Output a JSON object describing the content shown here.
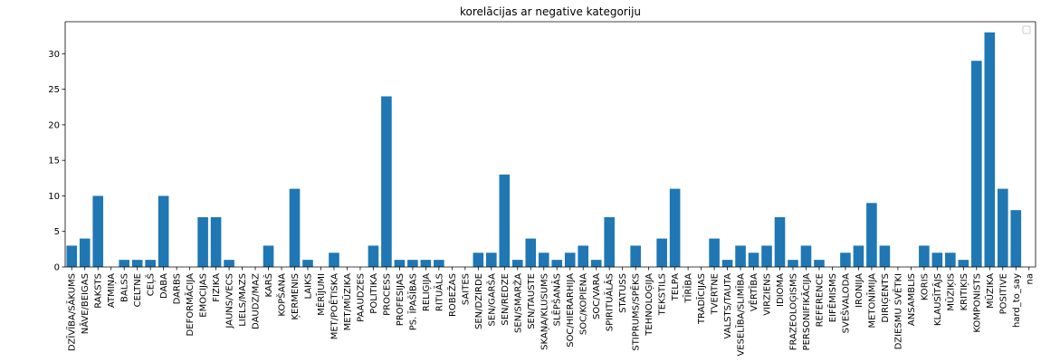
{
  "chart_data": {
    "type": "bar",
    "title": "korelācijas ar negative kategoriju",
    "xlabel": "",
    "ylabel": "",
    "ylim": [
      0,
      34.5
    ],
    "yticks": [
      0,
      5,
      10,
      15,
      20,
      25,
      30
    ],
    "grid": false,
    "legend_placement": "top-right",
    "legend_entries": [],
    "colors": {
      "bar": "#1f77b4"
    },
    "categories": [
      "DZĪVĪBA/SĀKUMS",
      "NĀVE/BEIGAS",
      "RAKSTS",
      "ATMIŅA",
      "BALSS",
      "CELTNE",
      "CEĻŠ",
      "DABA",
      "DARBS",
      "DEFORMĀCIJA",
      "EMOCIJAS",
      "FIZIKA",
      "JAUNS/VECS",
      "LIELS/MAZS",
      "DAUDZ/MAZ",
      "KARŠ",
      "KOPŠANA",
      "ĶERMENIS",
      "LAIKS",
      "MĒRĪJUMI",
      "MET/POĒTISKA",
      "MET/MŪZIKA",
      "PAAUDZES",
      "POLITIKA",
      "PROCESS",
      "PROFESIJAS",
      "PS. ĪPAŠĪBAS",
      "RELIĢIJA",
      "RITUĀLS",
      "ROBEŽAS",
      "SAITES",
      "SEN/DZIRDE",
      "SEN/GARŠA",
      "SEN/REDZE",
      "SEN/SMARŽA",
      "SEN/TAUSTE",
      "SKAŅA/KLUSUMS",
      "SLĒPŠANĀS",
      "SOC/HIERARHIJA",
      "SOC/KOPIENA",
      "SOC/VARA",
      "SPIRITUĀLĀS",
      "STATUSS",
      "STIPRUMS/SPĒKS",
      "TEHNOLOĢIJA",
      "TEKSTILS",
      "TELPA",
      "TĪRĪBA",
      "TRADĪCIJAS",
      "TVERTNE",
      "VALSTS/TAUTA",
      "VESELĪBA/SLIMĪBA",
      "VĒRTĪBA",
      "VIRZIENS",
      "IDIOMA",
      "FRAZEOLOĢISMS",
      "PERSONIFIKĀCIJA",
      "REFERENCE",
      "EIFĒMISMS",
      "SVEŠVALODA",
      "IRONIJA",
      "METONĪMIJA",
      "DIRIĢENTS",
      "DZIESMU SVĒTKI",
      "ANSAMBLIS",
      "KORIS",
      "KLAUSĪTĀJS",
      "MŪZIĶIS",
      "KRITIĶIS",
      "KOMPONISTS",
      "MŪZIKA",
      "POSITIVE",
      "hard_to_say",
      "na"
    ],
    "values": [
      3,
      4,
      10,
      0,
      1,
      1,
      1,
      10,
      0,
      0,
      7,
      7,
      1,
      0,
      0,
      3,
      0,
      11,
      1,
      0,
      2,
      0,
      0,
      3,
      24,
      1,
      1,
      1,
      1,
      0,
      0,
      2,
      2,
      13,
      1,
      4,
      2,
      1,
      2,
      3,
      1,
      7,
      0,
      3,
      0,
      4,
      11,
      0,
      0,
      4,
      1,
      3,
      2,
      3,
      7,
      1,
      3,
      1,
      0,
      2,
      3,
      9,
      3,
      0,
      0,
      3,
      2,
      2,
      1,
      29,
      33,
      11,
      8,
      0
    ]
  }
}
